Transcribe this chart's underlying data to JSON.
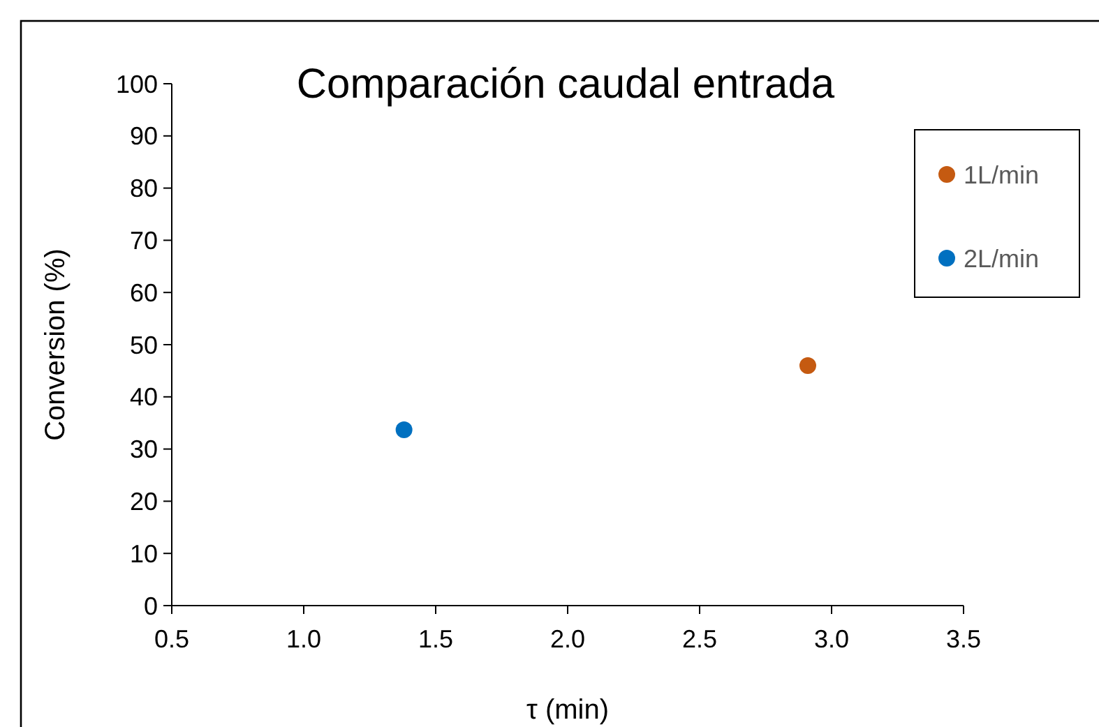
{
  "chart_data": {
    "type": "scatter",
    "title": "Comparación caudal entrada",
    "xlabel": "τ (min)",
    "ylabel": "Conversion (%)",
    "xlim": [
      0.5,
      3.5
    ],
    "xticks": [
      0.5,
      {
        "value": 1,
        "label": "1.0"
      },
      1.5,
      {
        "value": 2,
        "label": "2.0"
      },
      2.5,
      {
        "value": 3,
        "label": "3.0"
      },
      3.5
    ],
    "ylim": [
      0,
      100
    ],
    "yticks": [
      0,
      10,
      20,
      30,
      40,
      50,
      60,
      70,
      80,
      90,
      100
    ],
    "grid": false,
    "legend": "top right",
    "marker": "circle",
    "series": [
      {
        "name": "1L/min",
        "color": "#c55a11",
        "x": [
          2.91
        ],
        "values": [
          46
        ]
      },
      {
        "name": "2L/min",
        "color": "#0070c0",
        "x": [
          1.38
        ],
        "values": [
          33.7
        ]
      }
    ]
  }
}
